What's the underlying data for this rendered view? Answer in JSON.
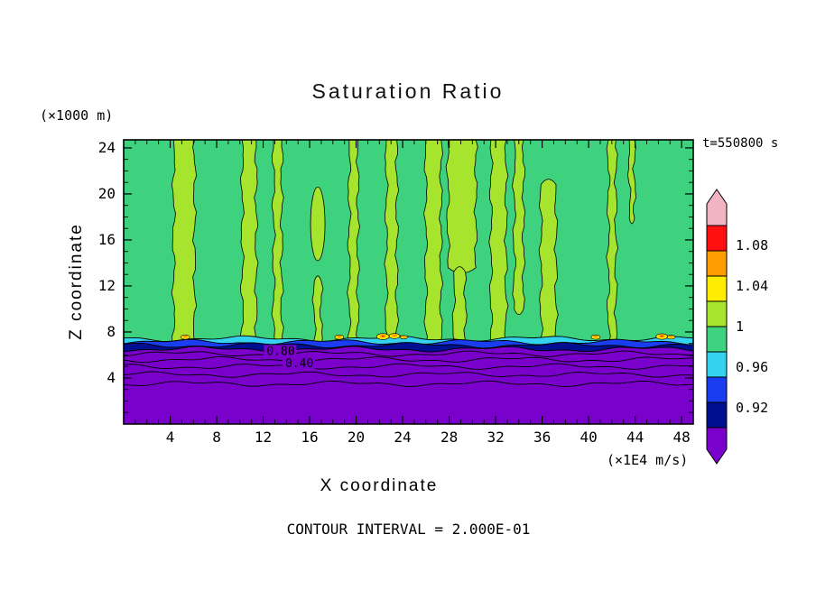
{
  "figure": {
    "background": "#ffffff"
  },
  "chart_data": {
    "type": "heatmap",
    "title": "Saturation Ratio",
    "xlabel": "X coordinate",
    "ylabel": "Z coordinate",
    "x_unit_label": "(×1E4 m/s)",
    "y_unit_label": "(×1000 m)",
    "time_label": "t=550800 s",
    "footnote": "CONTOUR INTERVAL = 2.000E-01",
    "xlim": [
      0,
      49
    ],
    "ylim": [
      0,
      24.7
    ],
    "x_ticks": [
      4,
      8,
      12,
      16,
      20,
      24,
      28,
      32,
      36,
      40,
      44,
      48
    ],
    "y_ticks": [
      4,
      8,
      12,
      16,
      20,
      24
    ],
    "x_major_step": 4,
    "y_major_step": 4,
    "minor_tick_step": 1,
    "grid": false,
    "field": {
      "background_color": "#3ed17e",
      "stripe_color": "#a6e42d",
      "stripes": [
        [
          4.3,
          6.1,
          7,
          24.7
        ],
        [
          10.2,
          11.4,
          7,
          24.7
        ],
        [
          12.9,
          13.6,
          7,
          24.7
        ],
        [
          16.4,
          17.0,
          7,
          12.8
        ],
        [
          19.4,
          20.15,
          7,
          24.7
        ],
        [
          22.6,
          23.5,
          7,
          24.7
        ],
        [
          26.0,
          27.3,
          7,
          24.7
        ],
        [
          27.9,
          30.3,
          13.2,
          24.7
        ],
        [
          28.4,
          29.4,
          7,
          13.6
        ],
        [
          31.6,
          32.9,
          7,
          24.7
        ],
        [
          33.6,
          34.4,
          9.6,
          24.7
        ],
        [
          35.9,
          37.2,
          7,
          21.2
        ],
        [
          41.7,
          42.35,
          7,
          24.7
        ],
        [
          43.5,
          43.95,
          17.5,
          24.7
        ]
      ],
      "blobs": [
        {
          "cx": 16.7,
          "cz": 17.4,
          "rx": 0.62,
          "rz": 3.2
        }
      ],
      "layers": [
        {
          "z": 7.42,
          "color": "#35d2f0"
        },
        {
          "z": 7.12,
          "color": "#1a3df2"
        },
        {
          "z": 6.85,
          "color": "#000f90"
        },
        {
          "z": 6.5,
          "color": "#7a00cc"
        }
      ],
      "line_contours_z": [
        6.1,
        5.6,
        5.0,
        4.3,
        3.5
      ],
      "hot_spots": [
        [
          5.3,
          7.55,
          1.0
        ],
        [
          18.55,
          7.55,
          1.0
        ],
        [
          22.3,
          7.6,
          1.4
        ],
        [
          23.3,
          7.65,
          1.2
        ],
        [
          24.1,
          7.55,
          0.8
        ],
        [
          40.6,
          7.55,
          1.0
        ],
        [
          46.3,
          7.6,
          1.3
        ],
        [
          47.1,
          7.55,
          0.9
        ]
      ],
      "spot_colors": [
        "#ffec00",
        "#ff9c00",
        "#ff0f0f"
      ]
    },
    "contour_labels": [
      {
        "text": "0.80",
        "x": 12.3,
        "z": 6.08
      },
      {
        "text": "0.40",
        "x": 13.9,
        "z": 5.02
      }
    ],
    "colorbar": {
      "labels": [
        "1.08",
        "1.04",
        "1",
        "0.96",
        "0.92"
      ],
      "segment_colors": [
        "#ff0f0f",
        "#ff9c00",
        "#ffec00",
        "#a6e42d",
        "#3ed17e",
        "#35d2f0",
        "#1a3df2",
        "#000f90"
      ],
      "top_arrow_color": "#f2b3c3",
      "bottom_arrow_color": "#7a00cc"
    }
  }
}
